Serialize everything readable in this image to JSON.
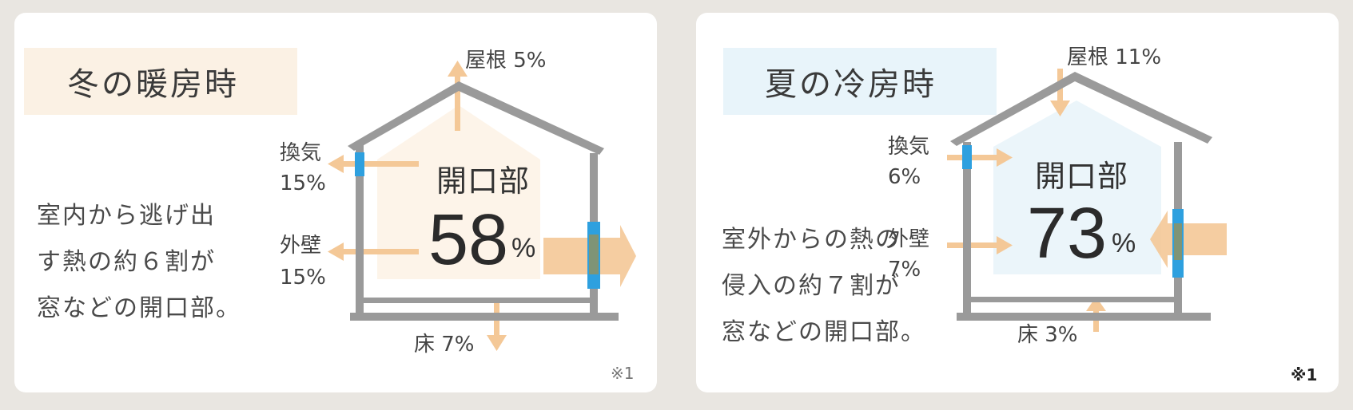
{
  "winter": {
    "title": "冬の暖房時",
    "description": [
      "室内から逃げ出",
      "す熱の約６割が",
      "窓などの開口部。"
    ],
    "opening_label": "開口部",
    "opening_value": "58",
    "percent_sign": "%",
    "roof": "屋根 5%",
    "ventilation_name": "換気",
    "ventilation_value": "15%",
    "wall_name": "外壁",
    "wall_value": "15%",
    "floor": "床 7%",
    "note": "※1",
    "accent_color": "#f6e3c8",
    "arrow_color": "#f4c897"
  },
  "summer": {
    "title": "夏の冷房時",
    "description": [
      "室外からの熱の",
      "侵入の約７割が",
      "窓などの開口部。"
    ],
    "opening_label": "開口部",
    "opening_value": "73",
    "percent_sign": "%",
    "roof": "屋根 11%",
    "ventilation_name": "換気",
    "ventilation_value": "6%",
    "wall_name": "外壁",
    "wall_value": "7%",
    "floor": "床 3%",
    "note": "※1",
    "accent_color": "#e3f1f8",
    "arrow_color": "#f4c897"
  }
}
